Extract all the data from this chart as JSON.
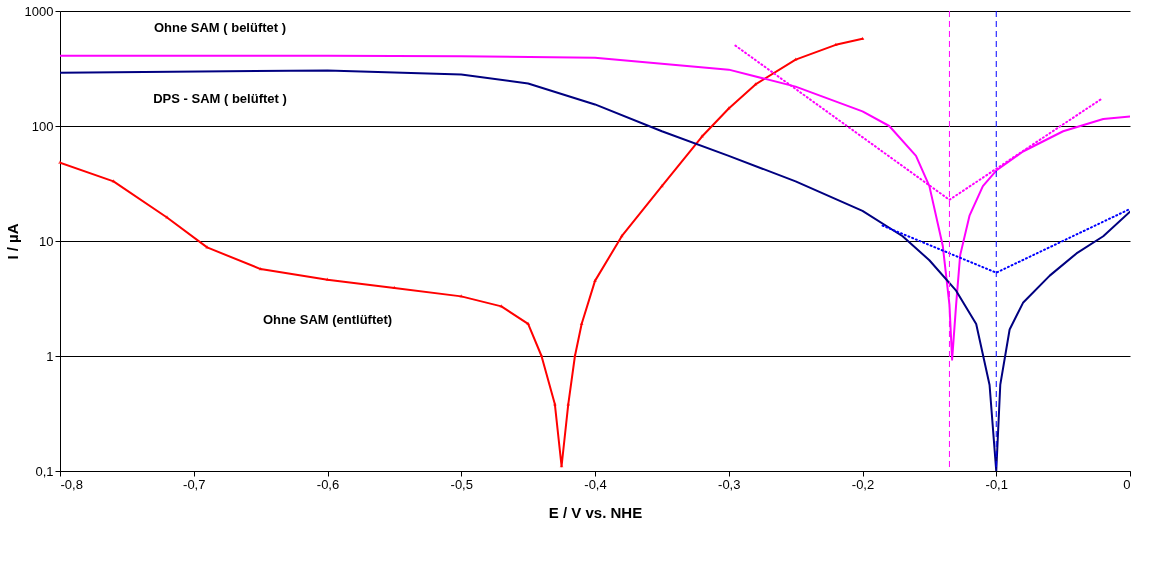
{
  "chart_data": {
    "type": "line",
    "xlabel": "E / V  vs. NHE",
    "ylabel": "I / µA",
    "log": "y",
    "grid": "y",
    "xlim": [
      -0.8,
      0
    ],
    "ylim": [
      0.1,
      1000
    ],
    "xticks": [
      {
        "value": -0.8,
        "label": "-0,8"
      },
      {
        "value": -0.7,
        "label": "-0,7"
      },
      {
        "value": -0.6,
        "label": "-0,6"
      },
      {
        "value": -0.5,
        "label": "-0,5"
      },
      {
        "value": -0.4,
        "label": "-0,4"
      },
      {
        "value": -0.3,
        "label": "-0,3"
      },
      {
        "value": -0.2,
        "label": "-0,2"
      },
      {
        "value": -0.1,
        "label": "-0,1"
      },
      0
    ],
    "yticks": [
      {
        "value": 0.1,
        "label": "0,1"
      },
      1,
      10,
      100,
      1000
    ],
    "series": [
      {
        "name": "Ohne SAM (entlüftet)",
        "color": "#ff0000",
        "marker": "triangle",
        "x": [
          -0.8,
          -0.76,
          -0.72,
          -0.69,
          -0.65,
          -0.6,
          -0.55,
          -0.5,
          -0.47,
          -0.45,
          -0.44,
          -0.43,
          -0.425,
          -0.42,
          -0.415,
          -0.41,
          -0.4,
          -0.38,
          -0.35,
          -0.32,
          -0.3,
          -0.28,
          -0.25,
          -0.22,
          -0.2
        ],
        "values": [
          48,
          33,
          16,
          8.8,
          5.7,
          4.6,
          3.9,
          3.3,
          2.7,
          1.9,
          1.0,
          0.38,
          0.11,
          0.38,
          1.0,
          1.9,
          4.5,
          11,
          30,
          81,
          142,
          230,
          378,
          508,
          573
        ]
      },
      {
        "name": "Ohne SAM ( belüftet )",
        "color": "#ff00ff",
        "x": [
          -0.8,
          -0.6,
          -0.5,
          -0.4,
          -0.3,
          -0.25,
          -0.2,
          -0.18,
          -0.16,
          -0.15,
          -0.14,
          -0.135,
          -0.133,
          -0.13,
          -0.127,
          -0.12,
          -0.11,
          -0.1,
          -0.08,
          -0.05,
          -0.02,
          0
        ],
        "values": [
          408,
          408,
          405,
          393,
          309,
          220,
          134,
          100,
          55,
          30,
          9.1,
          2.8,
          0.93,
          2.8,
          7.5,
          16.6,
          30,
          41,
          60,
          90,
          115,
          121
        ]
      },
      {
        "name": "DPS - SAM ( belüftet )",
        "color": "#000080",
        "x": [
          -0.8,
          -0.6,
          -0.5,
          -0.45,
          -0.4,
          -0.35,
          -0.3,
          -0.25,
          -0.2,
          -0.17,
          -0.15,
          -0.13,
          -0.115,
          -0.105,
          -0.1,
          -0.097,
          -0.09,
          -0.08,
          -0.06,
          -0.04,
          -0.02,
          0
        ],
        "values": [
          291,
          304,
          280,
          234,
          154,
          90,
          55,
          33,
          18.3,
          11,
          6.8,
          3.7,
          1.9,
          0.56,
          0.1,
          0.56,
          1.7,
          2.9,
          5,
          7.8,
          11,
          18
        ]
      },
      {
        "color": "#ff00ff",
        "line_style": "dotted",
        "x": [
          -0.295,
          -0.135,
          -0.022
        ],
        "values": [
          500,
          22.8,
          170
        ]
      },
      {
        "color": "#0000ff",
        "line_style": "dotted",
        "x": [
          -0.185,
          -0.1,
          0
        ],
        "values": [
          13.6,
          5.3,
          19
        ]
      }
    ],
    "ref_lines": [
      {
        "axis": "x",
        "value": -0.135,
        "color": "#ff00ff",
        "line_style": "dashed"
      },
      {
        "axis": "x",
        "value": -0.1,
        "color": "#0000ff",
        "line_style": "dashed"
      }
    ]
  }
}
